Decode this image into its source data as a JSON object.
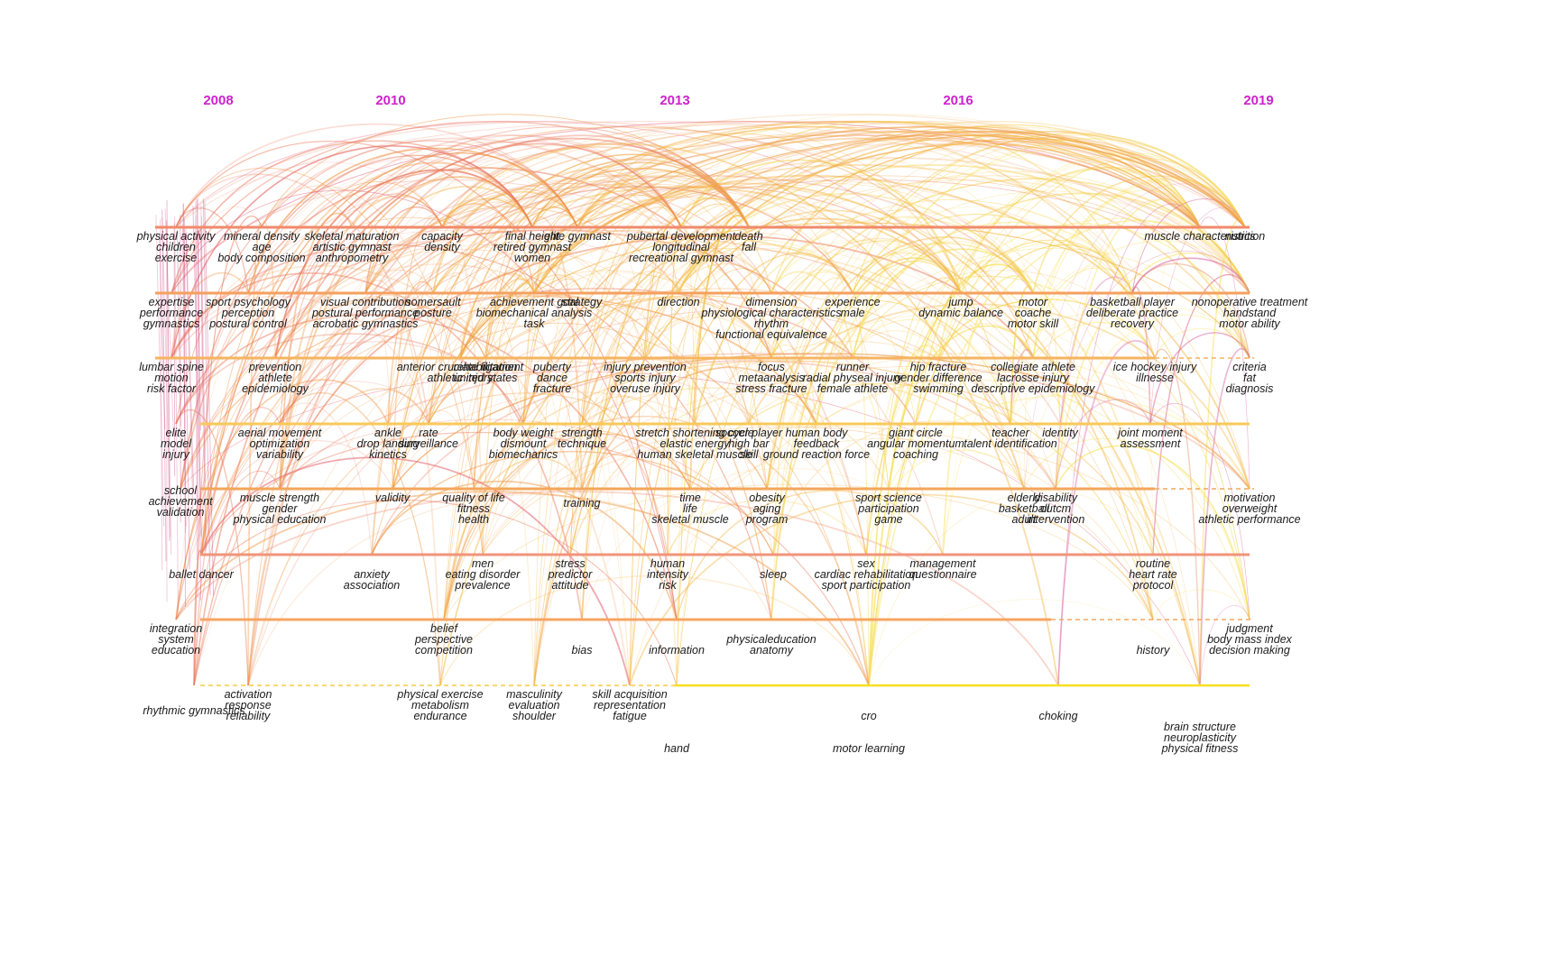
{
  "years": [
    "2008",
    "2010",
    "2013",
    "2016",
    "2019"
  ],
  "clusters": [
    {
      "id": 0,
      "color": "#f08a6a",
      "solid_until": 2019,
      "keywords": [
        [
          "physical activity",
          "children",
          "exercise"
        ],
        [
          "mineral density",
          "age",
          "body composition"
        ],
        [
          "skeletal maturation",
          "artistic gymnast",
          "anthropometry"
        ],
        [
          "capacity",
          "density"
        ],
        [
          "final height",
          "retired gymnast",
          "women"
        ],
        [
          "elite gymnast"
        ],
        [
          "pubertal development",
          "longitudinal",
          "recreational gymnast"
        ],
        [
          "death",
          "fall"
        ],
        [
          "muscle characteristics"
        ],
        [
          "nutrition"
        ]
      ]
    },
    {
      "id": 1,
      "color": "#f5a05e",
      "solid_until": 2019,
      "keywords": [
        [
          "expertise",
          "performance",
          "gymnastics"
        ],
        [
          "sport psychology",
          "perception",
          "postural control"
        ],
        [
          "visual contribution",
          "postural performance",
          "acrobatic gymnastics"
        ],
        [
          "somersault",
          "posture"
        ],
        [
          "achievement goal",
          "biomechanical analysis",
          "task"
        ],
        [
          "strategy"
        ],
        [
          "direction"
        ],
        [
          "dimension",
          "physiological characteristics",
          "rhythm",
          "functional equivalence"
        ],
        [
          "experience",
          "male"
        ],
        [
          "jump",
          "dynamic balance"
        ],
        [
          "motor",
          "coache",
          "motor skill"
        ],
        [
          "basketball player",
          "deliberate practice",
          "recovery"
        ],
        [
          "nonoperative treatment",
          "handstand",
          "motor ability"
        ]
      ]
    },
    {
      "id": 2,
      "color": "#f6b460",
      "solid_until": 2018,
      "keywords": [
        [
          "lumbar spine",
          "motion",
          "risk factor"
        ],
        [
          "prevention",
          "athlete",
          "epidemiology"
        ],
        [
          "anterior cruciate ligament",
          "athletic injury"
        ],
        [
          "rehabilitation",
          "united states"
        ],
        [
          "puberty",
          "dance",
          "fracture"
        ],
        [
          "injury prevention",
          "sports injury",
          "overuse injury"
        ],
        [
          "focus",
          "metaanalysis",
          "stress fracture"
        ],
        [
          "runner",
          "radial physeal injury",
          "female athlete"
        ],
        [
          "hip fracture",
          "gender difference",
          "swimming"
        ],
        [
          "collegiate athlete",
          "lacrosse injury",
          "descriptive epidemiology"
        ],
        [
          "ice hockey injury",
          "illnesse"
        ],
        [
          "criteria",
          "fat",
          "diagnosis"
        ]
      ]
    },
    {
      "id": 3,
      "color": "#f8c95a",
      "solid_until": 2019,
      "keywords": [
        [
          "elite",
          "model",
          "injury"
        ],
        [
          "aerial movement",
          "optimization",
          "variability"
        ],
        [
          "ankle",
          "drop landing",
          "kinetics"
        ],
        [
          "rate",
          "surveillance"
        ],
        [
          "body weight",
          "dismount",
          "biomechanics"
        ],
        [
          "strength",
          "technique"
        ],
        [
          "stretch shortening cycle",
          "elastic energy",
          "human skeletal muscle"
        ],
        [
          "soccer player",
          "high bar",
          "skill"
        ],
        [
          "human body",
          "feedback",
          "ground reaction force"
        ],
        [
          "giant circle",
          "angular momentum",
          "coaching"
        ],
        [
          "teacher",
          "talent identification"
        ],
        [
          "identity"
        ],
        [
          "joint moment",
          "assessment"
        ]
      ]
    },
    {
      "id": 4,
      "color": "#f3a65a",
      "solid_until": 2018,
      "keywords": [
        [
          "school",
          "achievement",
          "validation"
        ],
        [
          "muscle strength",
          "gender",
          "physical education"
        ],
        [
          "validity"
        ],
        [
          "quality of life",
          "fitness",
          "health"
        ],
        [
          "training"
        ],
        [
          "time",
          "life",
          "skeletal muscle"
        ],
        [
          "obesity",
          "aging",
          "program"
        ],
        [
          "sport science",
          "participation",
          "game"
        ],
        [
          "elderly",
          "basketball",
          "adult"
        ],
        [
          "disability",
          "outcm",
          "intervention"
        ],
        [
          "motivation",
          "overweight",
          "athletic performance"
        ]
      ]
    },
    {
      "id": 5,
      "color": "#f0947a",
      "solid_until": 2019,
      "keywords": [
        [
          "ballet dancer"
        ],
        [
          "anxiety",
          "association"
        ],
        [
          "men",
          "eating disorder",
          "prevalence"
        ],
        [
          "stress",
          "predictor",
          "attitude"
        ],
        [
          "human",
          "intensity",
          "risk"
        ],
        [
          "sleep"
        ],
        [
          "sex",
          "cardiac rehabilitation",
          "sport participation"
        ],
        [
          "management",
          "questionnaire"
        ],
        [
          "routine",
          "heart rate",
          "protocol"
        ]
      ]
    },
    {
      "id": 6,
      "color": "#f6a561",
      "solid_until": 2017,
      "keywords": [
        [
          "integration",
          "system",
          "education"
        ],
        [
          "belief",
          "perspective",
          "competition"
        ],
        [
          "bias"
        ],
        [
          "information"
        ],
        [
          "physicaleducation",
          "anatomy"
        ],
        [
          "history"
        ],
        [
          "judgment",
          "body mass index",
          "decision making"
        ]
      ]
    },
    {
      "id": 7,
      "color": "#f8e020",
      "solid_until": 2019,
      "keywords": [
        [
          "activation",
          "response",
          "reliability"
        ],
        [
          "rhythmic gymnastics"
        ],
        [
          "physical exercise",
          "metabolism",
          "endurance"
        ],
        [
          "masculinity",
          "evaluation",
          "shoulder"
        ],
        [
          "skill acquisition",
          "representation",
          "fatigue"
        ],
        [
          "cro"
        ],
        [
          "choking"
        ],
        [
          "hand"
        ],
        [
          "motor learning"
        ],
        [
          "brain structure",
          "neuroplasticity",
          "physical fitness"
        ]
      ]
    }
  ]
}
